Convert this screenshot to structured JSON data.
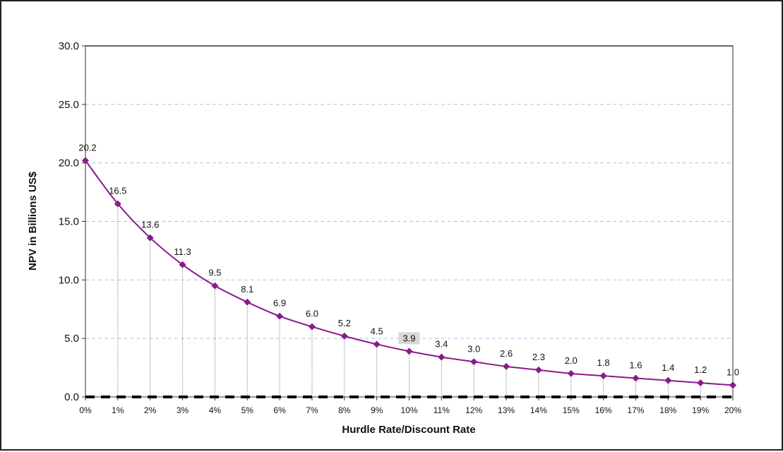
{
  "chart_data": {
    "type": "line",
    "title": "",
    "xlabel": "Hurdle Rate/Discount Rate",
    "ylabel": "NPV in Billions US$",
    "ylim": [
      0,
      30
    ],
    "yticks": [
      "0.0",
      "5.0",
      "10.0",
      "15.0",
      "20.0",
      "25.0",
      "30.0"
    ],
    "grid": "horizontal dashed",
    "categories": [
      "0%",
      "1%",
      "2%",
      "3%",
      "4%",
      "5%",
      "6%",
      "7%",
      "8%",
      "9%",
      "10%",
      "11%",
      "12%",
      "13%",
      "14%",
      "15%",
      "16%",
      "17%",
      "18%",
      "19%",
      "20%"
    ],
    "series": [
      {
        "name": "",
        "values": [
          20.2,
          16.5,
          13.6,
          11.3,
          9.5,
          8.1,
          6.9,
          6.0,
          5.2,
          4.5,
          3.9,
          3.4,
          3.0,
          2.6,
          2.3,
          2.0,
          1.8,
          1.6,
          1.4,
          1.2,
          1.0
        ],
        "labels": [
          "20.2",
          "16.5",
          "13.6",
          "11.3",
          "9.5",
          "8.1",
          "6.9",
          "6.0",
          "5.2",
          "4.5",
          "3.9",
          "3.4",
          "3.0",
          "2.6",
          "2.3",
          "2.0",
          "1.8",
          "1.6",
          "1.4",
          "1.2",
          "1.0"
        ]
      }
    ],
    "highlighted_label": "3.9",
    "colors": {
      "line": "#8b1a8b",
      "grid": "#a9c4e6",
      "drop_lines": "#8a8a8a",
      "zero_line": "#000000",
      "label_highlight": "#d9d9d9"
    }
  }
}
